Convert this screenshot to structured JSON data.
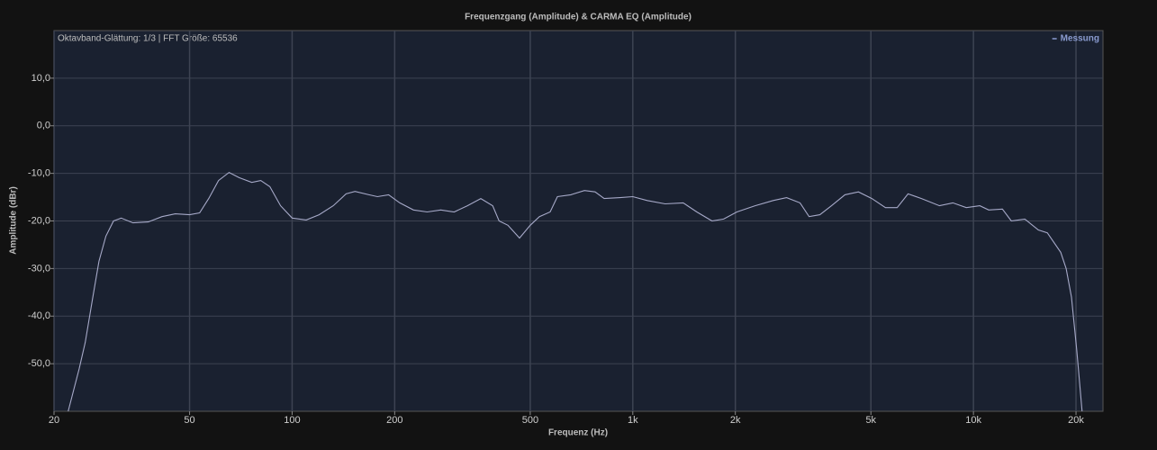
{
  "chart_data": {
    "type": "line",
    "title": "Frequenzgang (Amplitude) & CARMA EQ (Amplitude)",
    "annotation": "Oktavband-Glättung: 1/3 | FFT Größe: 65536",
    "x_label": "Frequenz (Hz)",
    "y_label": "Amplitude (dBr)",
    "xscale": "log",
    "grid": true,
    "legend": "top-right",
    "xlim": [
      20,
      24000
    ],
    "ylim": [
      -60,
      20
    ],
    "xticks": [
      20,
      50,
      100,
      200,
      500,
      {
        "value": 1000,
        "label": "1k"
      },
      {
        "value": 2000,
        "label": "2k"
      },
      {
        "value": 5000,
        "label": "5k"
      },
      {
        "value": 10000,
        "label": "10k"
      },
      {
        "value": 20000,
        "label": "20k"
      }
    ],
    "yticks": [
      {
        "value": 10,
        "label": "10,0"
      },
      {
        "value": 0,
        "label": "0,0"
      },
      {
        "value": -10,
        "label": "-10,0"
      },
      {
        "value": -20,
        "label": "-20,0"
      },
      {
        "value": -30,
        "label": "-30,0"
      },
      {
        "value": -40,
        "label": "-40,0"
      },
      {
        "value": -50,
        "label": "-50,0"
      }
    ],
    "x": [
      22,
      23.7,
      24.7,
      26,
      27.1,
      28.4,
      29.9,
      31.5,
      34.1,
      37.8,
      41.5,
      45.4,
      50,
      53.5,
      56.9,
      60.8,
      65.3,
      69.9,
      76.1,
      80.9,
      86,
      92.5,
      100,
      110,
      120,
      132,
      144,
      153,
      168,
      178,
      192,
      207,
      227,
      249,
      273,
      299,
      327,
      358,
      388,
      405,
      430,
      465,
      500,
      532,
      572,
      601,
      658,
      721,
      775,
      824,
      918,
      1000,
      1102,
      1244,
      1406,
      1541,
      1708,
      1848,
      2021,
      2285,
      2583,
      2827,
      3096,
      3292,
      3541,
      3830,
      4196,
      4596,
      5033,
      5515,
      5970,
      6427,
      7035,
      7946,
      8703,
      9529,
      10440,
      11090,
      12160,
      12920,
      14150,
      15500,
      16480,
      18040,
      18710,
      19400,
      20120,
      20840
    ],
    "series": [
      {
        "name": "Messung",
        "color": "#a6a9c8",
        "values": [
          -60,
          -51.1,
          -45.5,
          -36,
          -28.5,
          -23.2,
          -20,
          -19.4,
          -20.4,
          -20.2,
          -19.1,
          -18.5,
          -18.7,
          -18.3,
          -15.3,
          -11.5,
          -9.8,
          -10.9,
          -11.9,
          -11.5,
          -12.8,
          -16.8,
          -19.4,
          -19.8,
          -18.7,
          -16.8,
          -14.3,
          -13.8,
          -14.5,
          -14.9,
          -14.5,
          -16.2,
          -17.7,
          -18.1,
          -17.7,
          -18.1,
          -16.8,
          -15.3,
          -16.8,
          -20,
          -20.9,
          -23.6,
          -20.9,
          -19.1,
          -18.1,
          -14.9,
          -14.5,
          -13.6,
          -13.9,
          -15.3,
          -15.1,
          -14.9,
          -15.7,
          -16.4,
          -16.2,
          -18.1,
          -20,
          -19.6,
          -18.1,
          -16.8,
          -15.7,
          -15.1,
          -16.2,
          -19.1,
          -18.7,
          -16.8,
          -14.5,
          -13.9,
          -15.3,
          -17.2,
          -17.2,
          -14.3,
          -15.3,
          -16.8,
          -16.2,
          -17.2,
          -16.8,
          -17.7,
          -17.5,
          -20,
          -19.6,
          -21.9,
          -22.5,
          -26.6,
          -30,
          -36,
          -47.4,
          -60
        ]
      }
    ]
  }
}
